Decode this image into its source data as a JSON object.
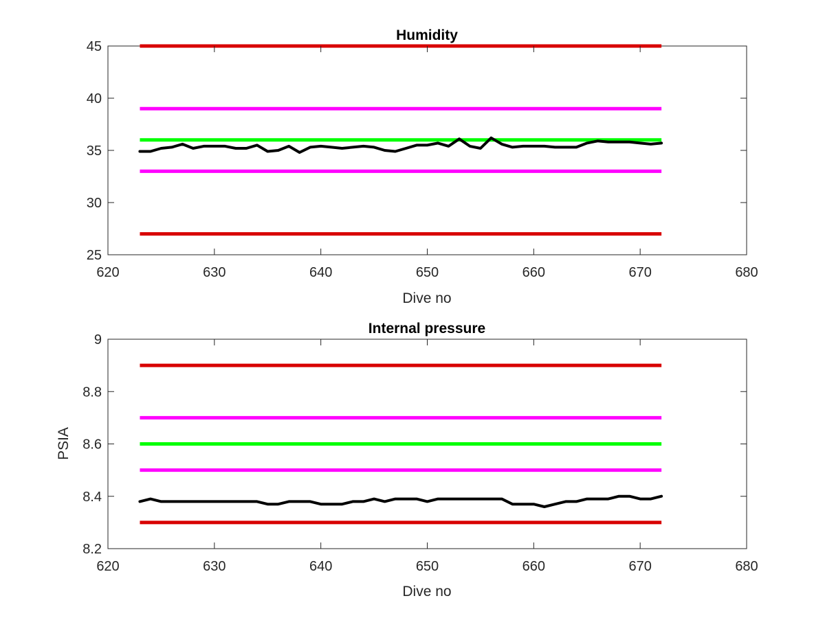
{
  "colors": {
    "red": "#d80000",
    "magenta": "#ff00ff",
    "green": "#00ff00",
    "black": "#000000"
  },
  "chart_data": [
    {
      "type": "line",
      "title": "Humidity",
      "xlabel": "Dive no",
      "ylabel": "",
      "xlim": [
        620,
        680
      ],
      "ylim": [
        25,
        45
      ],
      "xticks": [
        620,
        630,
        640,
        650,
        660,
        670,
        680
      ],
      "yticks": [
        25,
        30,
        35,
        40,
        45
      ],
      "grid": false,
      "thresholds": [
        {
          "value": 45,
          "x": [
            623,
            672
          ],
          "color": "#d80000"
        },
        {
          "value": 39,
          "x": [
            623,
            672
          ],
          "color": "#ff00ff"
        },
        {
          "value": 36,
          "x": [
            623,
            672
          ],
          "color": "#00ff00"
        },
        {
          "value": 33,
          "x": [
            623,
            672
          ],
          "color": "#ff00ff"
        },
        {
          "value": 27,
          "x": [
            623,
            672
          ],
          "color": "#d80000"
        }
      ],
      "series": [
        {
          "color": "#000000",
          "x": [
            623,
            624,
            625,
            626,
            627,
            628,
            629,
            630,
            631,
            632,
            633,
            634,
            635,
            636,
            637,
            638,
            639,
            640,
            641,
            642,
            643,
            644,
            645,
            646,
            647,
            648,
            649,
            650,
            651,
            652,
            653,
            654,
            655,
            656,
            657,
            658,
            659,
            660,
            661,
            662,
            663,
            664,
            665,
            666,
            667,
            668,
            669,
            670,
            671,
            672
          ],
          "values": [
            34.9,
            34.9,
            35.2,
            35.3,
            35.6,
            35.2,
            35.4,
            35.4,
            35.4,
            35.2,
            35.2,
            35.5,
            34.9,
            35.0,
            35.4,
            34.8,
            35.3,
            35.4,
            35.3,
            35.2,
            35.3,
            35.4,
            35.3,
            35.0,
            34.9,
            35.2,
            35.5,
            35.5,
            35.7,
            35.4,
            36.1,
            35.4,
            35.2,
            36.2,
            35.6,
            35.3,
            35.4,
            35.4,
            35.4,
            35.3,
            35.3,
            35.3,
            35.7,
            35.9,
            35.8,
            35.8,
            35.8,
            35.7,
            35.6,
            35.7
          ]
        }
      ]
    },
    {
      "type": "line",
      "title": "Internal pressure",
      "xlabel": "Dive no",
      "ylabel": "PSIA",
      "xlim": [
        620,
        680
      ],
      "ylim": [
        8.2,
        9
      ],
      "xticks": [
        620,
        630,
        640,
        650,
        660,
        670,
        680
      ],
      "yticks": [
        8.2,
        8.4,
        8.6,
        8.8,
        9
      ],
      "ytick_labels": [
        "8.2",
        "8.4",
        "8.6",
        "8.8",
        "9"
      ],
      "grid": false,
      "thresholds": [
        {
          "value": 8.9,
          "x": [
            623,
            672
          ],
          "color": "#d80000"
        },
        {
          "value": 8.7,
          "x": [
            623,
            672
          ],
          "color": "#ff00ff"
        },
        {
          "value": 8.6,
          "x": [
            623,
            672
          ],
          "color": "#00ff00"
        },
        {
          "value": 8.5,
          "x": [
            623,
            672
          ],
          "color": "#ff00ff"
        },
        {
          "value": 8.3,
          "x": [
            623,
            672
          ],
          "color": "#d80000"
        }
      ],
      "series": [
        {
          "color": "#000000",
          "x": [
            623,
            624,
            625,
            626,
            627,
            628,
            629,
            630,
            631,
            632,
            633,
            634,
            635,
            636,
            637,
            638,
            639,
            640,
            641,
            642,
            643,
            644,
            645,
            646,
            647,
            648,
            649,
            650,
            651,
            652,
            653,
            654,
            655,
            656,
            657,
            658,
            659,
            660,
            661,
            662,
            663,
            664,
            665,
            666,
            667,
            668,
            669,
            670,
            671,
            672
          ],
          "values": [
            8.38,
            8.39,
            8.38,
            8.38,
            8.38,
            8.38,
            8.38,
            8.38,
            8.38,
            8.38,
            8.38,
            8.38,
            8.37,
            8.37,
            8.38,
            8.38,
            8.38,
            8.37,
            8.37,
            8.37,
            8.38,
            8.38,
            8.39,
            8.38,
            8.39,
            8.39,
            8.39,
            8.38,
            8.39,
            8.39,
            8.39,
            8.39,
            8.39,
            8.39,
            8.39,
            8.37,
            8.37,
            8.37,
            8.36,
            8.37,
            8.38,
            8.38,
            8.39,
            8.39,
            8.39,
            8.4,
            8.4,
            8.39,
            8.39,
            8.4
          ]
        }
      ]
    }
  ]
}
